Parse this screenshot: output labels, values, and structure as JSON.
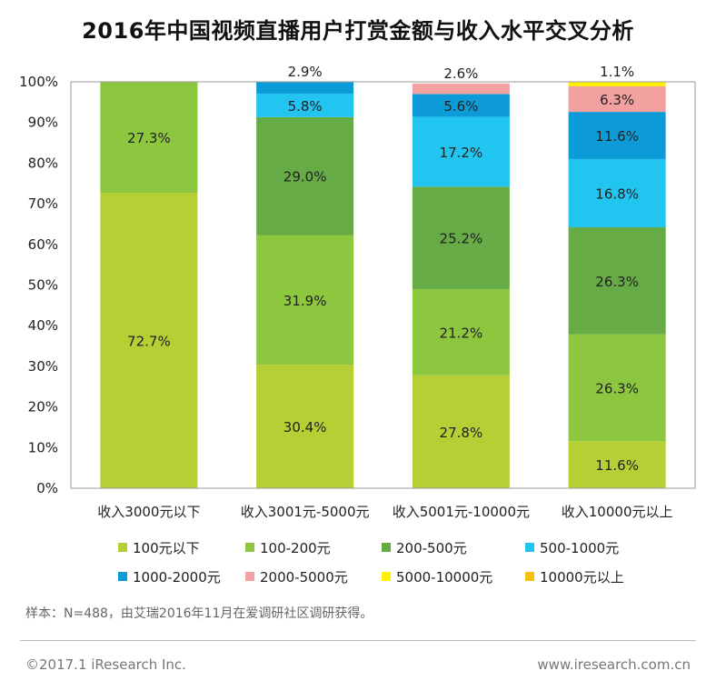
{
  "title": "2016年中国视频直播用户打赏金额与收入水平交叉分析",
  "footer": {
    "sample_note": "样本：N=488，由艾瑞2016年11月在爱调研社区调研获得。",
    "copyright": "©2017.1 iResearch Inc.",
    "website": "www.iresearch.com.cn"
  },
  "chart_data": {
    "type": "bar",
    "stacked": true,
    "title": "2016年中国视频直播用户打赏金额与收入水平交叉分析",
    "xlabel": "",
    "ylabel": "",
    "ylim": [
      0,
      100
    ],
    "yticks": [
      "0%",
      "10%",
      "20%",
      "30%",
      "40%",
      "50%",
      "60%",
      "70%",
      "80%",
      "90%",
      "100%"
    ],
    "legend_position": "bottom",
    "grid": false,
    "categories": [
      "收入3000元以下",
      "收入3001元-5000元",
      "收入5001元-10000元",
      "收入10000元以上"
    ],
    "series": [
      {
        "name": "100元以下",
        "color": "#b5cf35",
        "values": [
          72.7,
          30.4,
          27.8,
          11.6
        ]
      },
      {
        "name": "100-200元",
        "color": "#8dc63f",
        "values": [
          27.3,
          31.9,
          21.2,
          26.3
        ]
      },
      {
        "name": "200-500元",
        "color": "#66ab45",
        "values": [
          0,
          29.0,
          25.2,
          26.3
        ]
      },
      {
        "name": "500-1000元",
        "color": "#22c4f0",
        "values": [
          0,
          5.8,
          17.2,
          16.8
        ]
      },
      {
        "name": "1000-2000元",
        "color": "#0d9bd8",
        "values": [
          0,
          2.9,
          5.6,
          11.6
        ]
      },
      {
        "name": "2000-5000元",
        "color": "#f2a0a0",
        "values": [
          0,
          0,
          2.6,
          6.3
        ]
      },
      {
        "name": "5000-10000元",
        "color": "#fff200",
        "values": [
          0,
          0,
          0,
          1.1
        ]
      },
      {
        "name": "10000元以上",
        "color": "#f4c20d",
        "values": [
          0,
          0,
          0,
          0
        ]
      }
    ],
    "data_labels": [
      [
        "72.7%",
        "27.3%",
        "",
        "",
        "",
        "",
        "",
        ""
      ],
      [
        "30.4%",
        "31.9%",
        "29.0%",
        "5.8%",
        "2.9%",
        "",
        "",
        ""
      ],
      [
        "27.8%",
        "21.2%",
        "25.2%",
        "17.2%",
        "5.6%",
        "2.6%",
        "",
        ""
      ],
      [
        "11.6%",
        "26.3%",
        "26.3%",
        "16.8%",
        "11.6%",
        "6.3%",
        "1.1%",
        ""
      ]
    ]
  }
}
